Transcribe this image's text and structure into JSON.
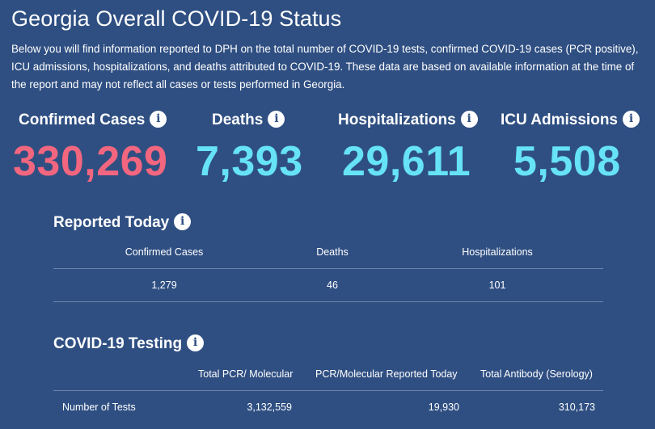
{
  "page": {
    "title": "Georgia Overall COVID-19 Status",
    "description": "Below you will find information reported to DPH on the total number of COVID-19 tests, confirmed COVID-19 cases (PCR positive), ICU admissions, hospitalizations, and deaths attributed to COVID-19. These data are based on available information at the time of the report and may not reflect all cases or tests performed in Georgia."
  },
  "stats": {
    "confirmed": {
      "label": "Confirmed Cases",
      "value": "330,269"
    },
    "deaths": {
      "label": "Deaths",
      "value": "7,393"
    },
    "hospitalizations": {
      "label": "Hospitalizations",
      "value": "29,611"
    },
    "icu": {
      "label": "ICU Admissions",
      "value": "5,508"
    }
  },
  "info_glyph": "i",
  "reported_today": {
    "title": "Reported Today",
    "headers": [
      "Confirmed Cases",
      "Deaths",
      "Hospitalizations"
    ],
    "values": [
      "1,279",
      "46",
      "101"
    ]
  },
  "testing": {
    "title": "COVID-19 Testing",
    "headers": [
      "Total PCR/ Molecular",
      "PCR/Molecular Reported Today",
      "Total Antibody (Serology)"
    ],
    "row_label": "Number of Tests",
    "values": [
      "3,132,559",
      "19,930",
      "310,173"
    ]
  },
  "colors": {
    "background": "#2f4f82",
    "cases": "#f2667f",
    "other": "#66e3f5"
  }
}
